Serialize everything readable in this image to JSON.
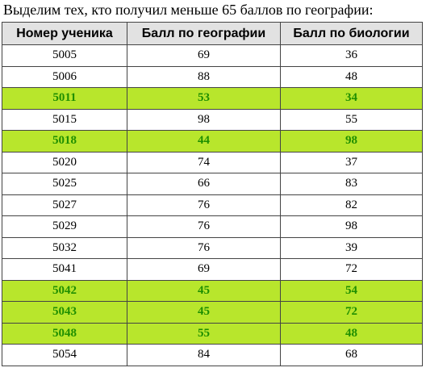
{
  "caption": "Выделим тех, кто получил меньше 65 баллов по географии:",
  "colors": {
    "highlight_background": "#b8e62c",
    "highlight_text": "#1f8f00",
    "header_background": "#e2e2e2"
  },
  "table": {
    "headers": [
      "Номер ученика",
      "Балл по географии",
      "Балл по биологии"
    ],
    "rows": [
      {
        "id": "5005",
        "geography": "69",
        "biology": "36",
        "highlighted": false
      },
      {
        "id": "5006",
        "geography": "88",
        "biology": "48",
        "highlighted": false
      },
      {
        "id": "5011",
        "geography": "53",
        "biology": "34",
        "highlighted": true
      },
      {
        "id": "5015",
        "geography": "98",
        "biology": "55",
        "highlighted": false
      },
      {
        "id": "5018",
        "geography": "44",
        "biology": "98",
        "highlighted": true
      },
      {
        "id": "5020",
        "geography": "74",
        "biology": "37",
        "highlighted": false
      },
      {
        "id": "5025",
        "geography": "66",
        "biology": "83",
        "highlighted": false
      },
      {
        "id": "5027",
        "geography": "76",
        "biology": "82",
        "highlighted": false
      },
      {
        "id": "5029",
        "geography": "76",
        "biology": "98",
        "highlighted": false
      },
      {
        "id": "5032",
        "geography": "76",
        "biology": "39",
        "highlighted": false
      },
      {
        "id": "5041",
        "geography": "69",
        "biology": "72",
        "highlighted": false
      },
      {
        "id": "5042",
        "geography": "45",
        "biology": "54",
        "highlighted": true
      },
      {
        "id": "5043",
        "geography": "45",
        "biology": "72",
        "highlighted": true
      },
      {
        "id": "5048",
        "geography": "55",
        "biology": "48",
        "highlighted": true
      },
      {
        "id": "5054",
        "geography": "84",
        "biology": "68",
        "highlighted": false
      }
    ]
  }
}
